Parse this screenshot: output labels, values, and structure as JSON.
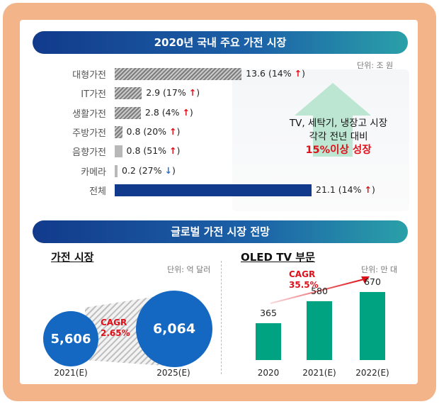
{
  "top_section": {
    "title": "2020년 국내 주요 가전 시장",
    "unit": "단위: 조 원"
  },
  "note": {
    "line1": "TV, 세탁기, 냉장고 시장",
    "line2": "각각 전년 대비",
    "highlight": "15%이상 성장"
  },
  "bottom_section": {
    "title": "글로벌 가전 시장 전망"
  },
  "colors": {
    "navy": "#123a8c",
    "blue": "#1468c2",
    "teal": "#00a381",
    "red": "#e0101a",
    "frame": "#f2b488"
  },
  "chart_data": [
    {
      "type": "bar",
      "orientation": "horizontal",
      "title": "2020년 국내 주요 가전 시장",
      "unit": "단위: 조 원",
      "categories": [
        "대형가전",
        "IT가전",
        "생활가전",
        "주방가전",
        "음향가전",
        "카메라",
        "전체"
      ],
      "values": [
        13.6,
        2.9,
        2.8,
        0.8,
        0.8,
        0.2,
        21.1
      ],
      "labels": [
        "13.6 (14%",
        "2.9 (17%",
        "2.8 (4%",
        "0.8 (20%",
        "0.8 (51%",
        "0.2 (27%",
        "21.1 (14%"
      ],
      "growth_pct": [
        14,
        17,
        4,
        20,
        51,
        -27,
        14
      ],
      "styles": [
        "hatch",
        "hatch",
        "hatch",
        "hatch",
        "solid-gray",
        "solid-gray",
        "solid-navy"
      ]
    },
    {
      "type": "bubble",
      "title": "가전 시장",
      "unit": "단위: 억 달러",
      "categories": [
        "2021(E)",
        "2025(E)"
      ],
      "values": [
        5606,
        6064
      ],
      "value_labels": [
        "5,606",
        "6,064"
      ],
      "cagr_label": "CAGR",
      "cagr_value": "2.65%"
    },
    {
      "type": "bar",
      "title": "OLED TV 부문",
      "unit": "단위: 만 대",
      "categories": [
        "2020",
        "2021(E)",
        "2022(E)"
      ],
      "values": [
        365,
        580,
        670
      ],
      "ylim": [
        0,
        700
      ],
      "cagr_label": "CAGR",
      "cagr_value": "35.5%"
    }
  ]
}
